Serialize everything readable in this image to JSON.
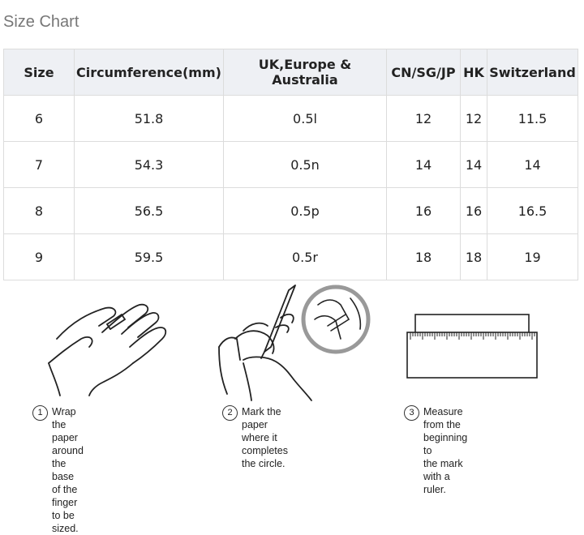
{
  "title": "Size Chart",
  "table": {
    "headers": [
      "Size",
      "Circumference(mm)",
      "UK,Europe & Australia",
      "CN/SG/JP",
      "HK",
      "Switzerland"
    ],
    "rows": [
      [
        "6",
        "51.8",
        "0.5l",
        "12",
        "12",
        "11.5"
      ],
      [
        "7",
        "54.3",
        "0.5n",
        "14",
        "14",
        "14"
      ],
      [
        "8",
        "56.5",
        "0.5p",
        "16",
        "16",
        "16.5"
      ],
      [
        "9",
        "59.5",
        "0.5r",
        "18",
        "18",
        "19"
      ]
    ]
  },
  "steps": [
    {
      "num": "1",
      "line1": "Wrap the paper around the",
      "line2": "base of the finger to be sized."
    },
    {
      "num": "2",
      "line1": "Mark the paper where it",
      "line2": "completes the circle."
    },
    {
      "num": "3",
      "line1": "Measure from the beginning to",
      "line2": "the mark with a ruler."
    }
  ]
}
